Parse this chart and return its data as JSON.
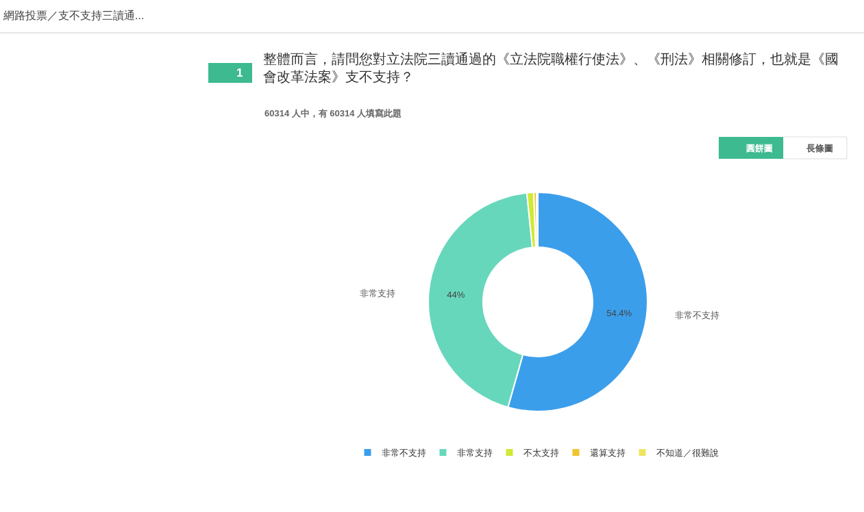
{
  "chart_data": {
    "type": "donut",
    "title": "整體而言，請問您對立法院三讀通過的《立法院職權行使法》、《刑法》相關修訂，也就是《國會改革法案》支不支持？",
    "subtitle": "60314 人中，有 60314 人填寫此題",
    "categories": [
      "非常不支持",
      "非常支持",
      "不太支持",
      "還算支持",
      "不知道／很難說"
    ],
    "values": [
      54.4,
      44,
      1.0,
      0.4,
      0.2
    ],
    "colors": [
      "#3b9eeb",
      "#67d7bc",
      "#d0e935",
      "#f0c330",
      "#efe660"
    ],
    "value_labels": [
      "54.4%",
      "44%",
      null,
      null,
      null
    ],
    "legend": "bottom",
    "annotations": [
      "網路投票／支不支持三讀通...",
      "1",
      "圓餅圖",
      "長條圖"
    ]
  }
}
